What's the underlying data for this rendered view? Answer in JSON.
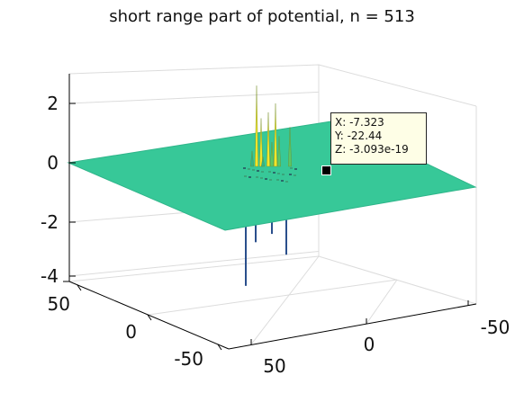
{
  "chart_data": {
    "type": "surface",
    "title": "short range part of potential, n = 513",
    "xlabel": "",
    "ylabel": "",
    "zlabel": "",
    "x_ticks": [
      "50",
      "0",
      "-50"
    ],
    "y_ticks": [
      "50",
      "0",
      "-50"
    ],
    "z_ticks": [
      "2",
      "0",
      "-2",
      "-4"
    ],
    "zlim": [
      -4,
      3
    ],
    "grid": true,
    "surface_level": 0,
    "spikes_z": [
      2.6,
      2.0,
      1.7,
      1.5,
      1.2,
      0.9,
      0.7,
      0.4,
      0.2,
      -0.6,
      -1.0,
      -1.4,
      -2.0,
      -3.5
    ],
    "colors": {
      "surface": "#37c898",
      "surface_edge": "#2fb58a",
      "spike_high": "#f3e52a",
      "spike_mid": "#5bc865",
      "spike_low": "#2a4f8c",
      "grid": "#dcdcdc",
      "axis": "#000000"
    },
    "datatip": {
      "x_label": "X: -7.323",
      "y_label": "Y: -22.44",
      "z_label": "Z: -3.093e-19"
    }
  }
}
